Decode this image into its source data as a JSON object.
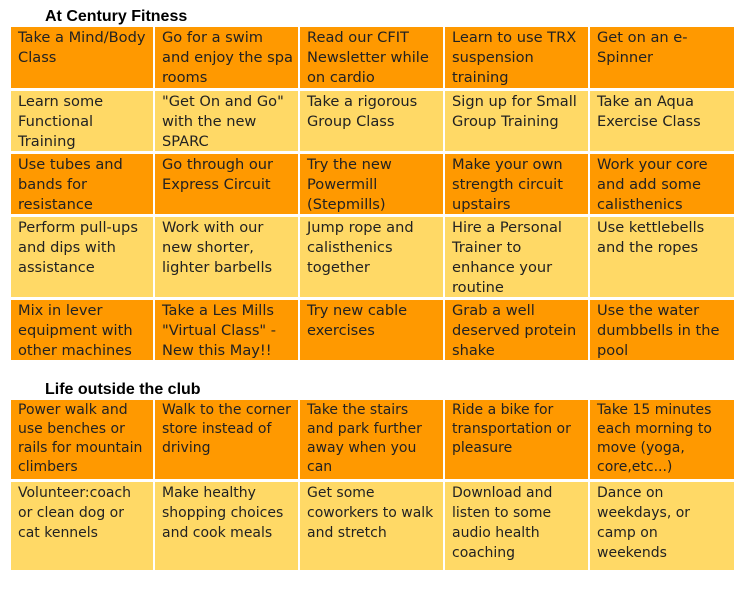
{
  "sections": [
    {
      "title": "At Century Fitness",
      "rows": [
        [
          "Take a Mind/Body Class",
          "Go for a swim and enjoy the spa rooms",
          "Read our CFIT Newsletter while on cardio",
          "Learn to use TRX suspension training",
          "Get on an e-Spinner"
        ],
        [
          "Learn some Functional Training",
          "\"Get On and Go\" with the new SPARC",
          "Take a rigorous Group Class",
          "Sign up for Small Group Training",
          "Take an Aqua Exercise Class"
        ],
        [
          "Use tubes and bands for resistance",
          "Go through our Express Circuit",
          "Try the new Powermill (Stepmills)",
          "Make your own strength circuit upstairs",
          "Work your core and add some calisthenics"
        ],
        [
          "Perform pull-ups and dips with assistance",
          "Work with our new shorter, lighter barbells",
          "Jump rope and calisthenics together",
          "Hire a Personal Trainer to enhance your routine",
          "Use kettlebells and the ropes"
        ],
        [
          "Mix in lever equipment with other machines",
          "Take a Les Mills \"Virtual Class\" - New this May!!",
          "Try new cable exercises",
          "Grab a well deserved protein shake",
          "Use the water dumbbells in the pool"
        ]
      ]
    },
    {
      "title": "Life outside the club",
      "rows": [
        [
          "Power walk and use benches or rails for mountain climbers",
          "Walk to the corner store instead of driving",
          "Take the stairs and park further away when you can",
          "Ride a bike for transportation or pleasure",
          "Take 15 minutes each morning to move (yoga, core,etc...)"
        ],
        [
          "Volunteer:coach or clean dog or cat kennels",
          "Make healthy shopping choices and cook meals",
          "Get some coworkers to walk and stretch",
          "Download and listen to some audio health coaching",
          "Dance on weekdays, or camp on weekends"
        ]
      ]
    }
  ],
  "colors": {
    "orange": "#ff9900",
    "yellow": "#ffd966"
  }
}
